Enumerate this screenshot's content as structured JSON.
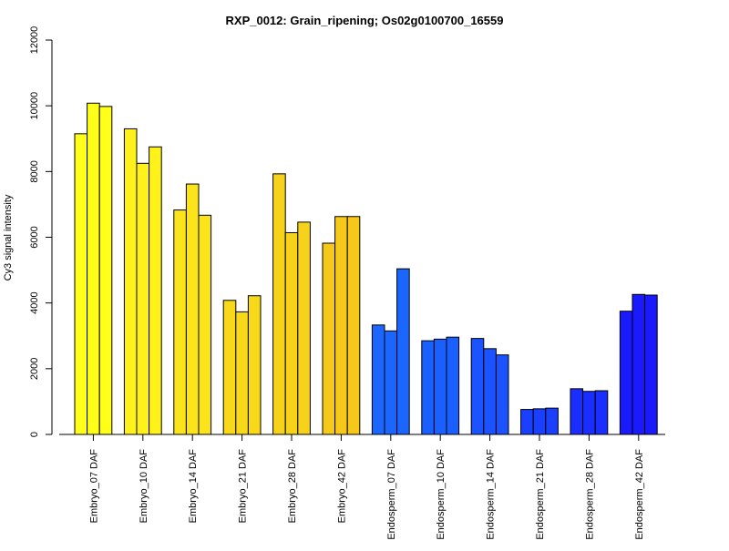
{
  "chart_data": {
    "type": "bar",
    "title": "RXP_0012: Grain_ripening; Os02g0100700_16559",
    "xlabel": "",
    "ylabel": "Cy3 signal intensity",
    "ylim": [
      0,
      12000
    ],
    "y_ticks": [
      0,
      2000,
      4000,
      6000,
      8000,
      10000,
      12000
    ],
    "categories": [
      "Embryo_07 DAF",
      "Embryo_10 DAF",
      "Embryo_14 DAF",
      "Embryo_21 DAF",
      "Embryo_28 DAF",
      "Embryo_42 DAF",
      "Endosperm_07 DAF",
      "Endosperm_10 DAF",
      "Endosperm_14 DAF",
      "Endosperm_21 DAF",
      "Endosperm_28 DAF",
      "Endosperm_42 DAF"
    ],
    "values": [
      [
        9150,
        10080,
        9980
      ],
      [
        9300,
        8250,
        8750
      ],
      [
        6830,
        7620,
        6670
      ],
      [
        4080,
        3730,
        4220
      ],
      [
        7930,
        6140,
        6460
      ],
      [
        5820,
        6630,
        6630
      ],
      [
        3330,
        3150,
        5040
      ],
      [
        2850,
        2900,
        2960
      ],
      [
        2920,
        2610,
        2420
      ],
      [
        760,
        780,
        800
      ],
      [
        1390,
        1310,
        1330
      ],
      [
        3750,
        4260,
        4240
      ]
    ],
    "group_colors": [
      "#ffff1a",
      "#fff21a",
      "#fbe41a",
      "#f8d91a",
      "#f7d21a",
      "#f6c81a",
      "#1a66ff",
      "#1a5fff",
      "#1a53ff",
      "#1a3fff",
      "#1a2fff",
      "#1a1aff"
    ],
    "grid": false,
    "legend": "none"
  }
}
